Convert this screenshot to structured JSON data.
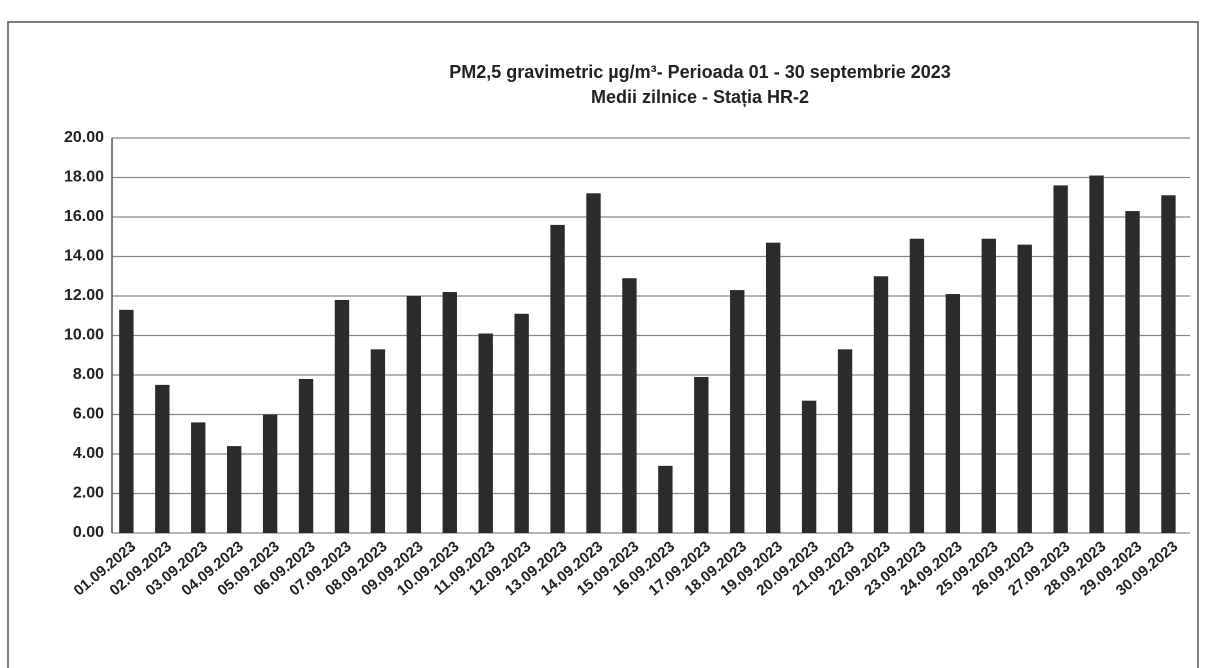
{
  "chart_data": {
    "type": "bar",
    "title": "PM2,5 gravimetric µg/m³- Perioada 01 - 30 septembrie 2023",
    "subtitle": "Medii zilnice - Stația HR-2",
    "categories": [
      "01.09.2023",
      "02.09.2023",
      "03.09.2023",
      "04.09.2023",
      "05.09.2023",
      "06.09.2023",
      "07.09.2023",
      "08.09.2023",
      "09.09.2023",
      "10.09.2023",
      "11.09.2023",
      "12.09.2023",
      "13.09.2023",
      "14.09.2023",
      "15.09.2023",
      "16.09.2023",
      "17.09.2023",
      "18.09.2023",
      "19.09.2023",
      "20.09.2023",
      "21.09.2023",
      "22.09.2023",
      "23.09.2023",
      "24.09.2023",
      "25.09.2023",
      "26.09.2023",
      "27.09.2023",
      "28.09.2023",
      "29.09.2023",
      "30.09.2023"
    ],
    "values": [
      11.3,
      7.5,
      5.6,
      4.4,
      6.0,
      7.8,
      11.8,
      9.3,
      12.0,
      12.2,
      10.1,
      11.1,
      15.6,
      17.2,
      12.9,
      3.4,
      7.9,
      12.3,
      14.7,
      6.7,
      9.3,
      13.0,
      14.9,
      12.1,
      14.9,
      14.6,
      17.6,
      18.1,
      16.3,
      17.1
    ],
    "color": "#2b2b2b",
    "ylim": [
      0,
      20
    ],
    "yticks": [
      {
        "value": 0,
        "label": "0.00"
      },
      {
        "value": 2,
        "label": "2.00"
      },
      {
        "value": 4,
        "label": "4.00"
      },
      {
        "value": 6,
        "label": "6.00"
      },
      {
        "value": 8,
        "label": "8.00"
      },
      {
        "value": 10,
        "label": "10.00"
      },
      {
        "value": 12,
        "label": "12.00"
      },
      {
        "value": 14,
        "label": "14.00"
      },
      {
        "value": 16,
        "label": "16.00"
      },
      {
        "value": 18,
        "label": "18.00"
      },
      {
        "value": 20,
        "label": "20.00"
      }
    ],
    "grid": true
  }
}
